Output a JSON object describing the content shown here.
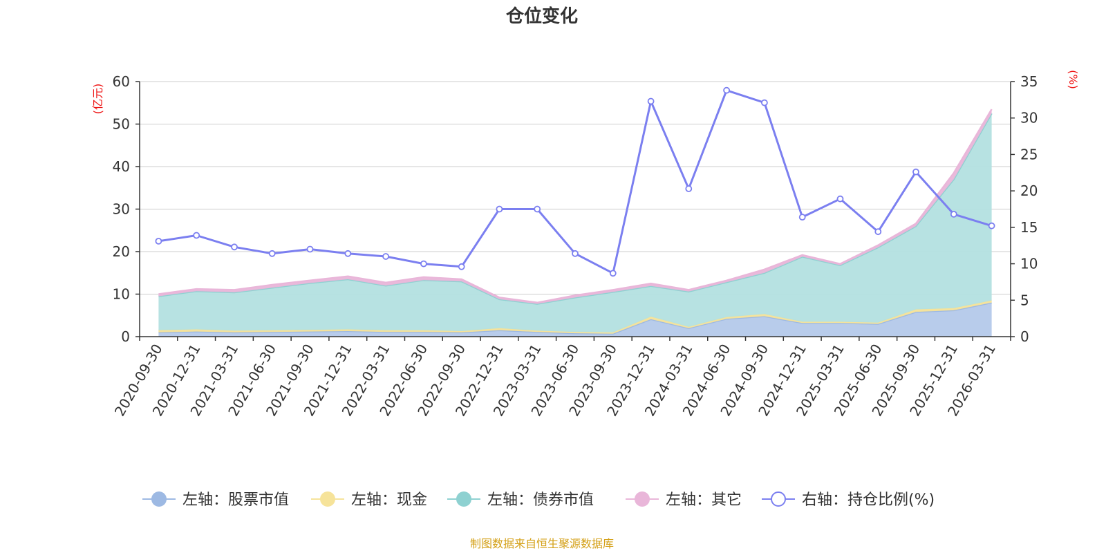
{
  "chart_data": {
    "type": "area",
    "title": "仓位变化",
    "source": "制图数据来自恒生聚源数据库",
    "left_unit": "(亿元)",
    "right_unit": "(%)",
    "left_ylim": [
      0,
      60
    ],
    "left_ticks": [
      0,
      10,
      20,
      30,
      40,
      50,
      60
    ],
    "right_ylim": [
      0,
      35
    ],
    "right_ticks": [
      0,
      5,
      10,
      15,
      20,
      25,
      30,
      35
    ],
    "grid": true,
    "legend_position": "bottom",
    "categories": [
      "2020-09-30",
      "2020-12-31",
      "2021-03-31",
      "2021-06-30",
      "2021-09-30",
      "2021-12-31",
      "2022-03-31",
      "2022-06-30",
      "2022-09-30",
      "2022-12-31",
      "2023-03-31",
      "2023-06-30",
      "2023-09-30",
      "2023-12-31",
      "2024-03-31",
      "2024-06-30",
      "2024-09-30",
      "2024-12-31",
      "2025-03-31",
      "2025-06-30",
      "2025-09-30",
      "2025-12-31",
      "2026-03-31"
    ],
    "stack_series": [
      {
        "name": "左轴：股票市值",
        "color": "#9db9e3",
        "fill": "#b4c9ea",
        "values": [
          1.0,
          1.2,
          1.0,
          1.1,
          1.2,
          1.3,
          1.1,
          1.1,
          1.0,
          1.5,
          1.1,
          0.8,
          0.7,
          4.1,
          2.0,
          4.2,
          4.8,
          3.2,
          3.2,
          3.0,
          5.8,
          6.2,
          8.0
        ]
      },
      {
        "name": "左轴：现金",
        "color": "#f6e39a",
        "fill": "#f6e39a",
        "values": [
          0.5,
          0.5,
          0.4,
          0.4,
          0.4,
          0.4,
          0.4,
          0.4,
          0.3,
          0.5,
          0.3,
          0.3,
          0.3,
          0.6,
          0.3,
          0.4,
          0.5,
          0.3,
          0.3,
          0.3,
          0.6,
          0.5,
          0.5
        ]
      },
      {
        "name": "左轴：债券市值",
        "color": "#8ed1d1",
        "fill": "#b3e0e0",
        "values": [
          8.0,
          9.0,
          9.0,
          10.0,
          11.0,
          11.8,
          10.5,
          11.8,
          11.7,
          6.8,
          6.3,
          8.1,
          9.5,
          7.2,
          8.3,
          8.2,
          9.7,
          15.3,
          13.3,
          17.7,
          19.6,
          30.3,
          44.0
        ]
      },
      {
        "name": "左轴：其它",
        "color": "#e9b6d9",
        "fill": "#e9b6d9",
        "values": [
          0.5,
          0.5,
          0.6,
          0.7,
          0.6,
          0.7,
          0.7,
          0.7,
          0.5,
          0.4,
          0.3,
          0.5,
          0.5,
          0.6,
          0.4,
          0.4,
          0.8,
          0.4,
          0.3,
          0.5,
          0.6,
          1.5,
          1.0
        ]
      }
    ],
    "line_series": {
      "name": "右轴：持仓比例(%)",
      "color": "#7b7ff0",
      "values": [
        13.1,
        13.9,
        12.3,
        11.4,
        12.0,
        11.4,
        11.0,
        10.0,
        9.6,
        17.5,
        17.5,
        11.4,
        8.7,
        32.3,
        20.3,
        33.8,
        32.1,
        16.4,
        18.9,
        14.4,
        22.6,
        16.8,
        15.2
      ]
    }
  }
}
